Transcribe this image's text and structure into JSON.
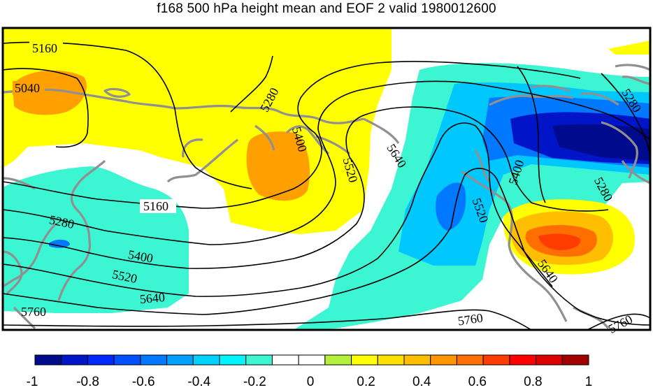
{
  "title": "f168 500 hPa height mean and EOF 2 valid 1980012600",
  "colorbar": {
    "tick_labels": [
      "-1",
      "-0.8",
      "-0.6",
      "-0.4",
      "-0.2",
      "0",
      "0.2",
      "0.4",
      "0.6",
      "0.8",
      "1"
    ],
    "colors": [
      "#000a8c",
      "#0014c8",
      "#0028ff",
      "#0050ff",
      "#0078ff",
      "#00a0ff",
      "#00d2ff",
      "#00f5ff",
      "#3cf5d2",
      "#ffffff",
      "#ffffff",
      "#b4f03c",
      "#ffff00",
      "#ffe100",
      "#ffbe00",
      "#ff9600",
      "#ff6e00",
      "#ff3c00",
      "#ff0000",
      "#dc0000",
      "#a00000"
    ]
  },
  "contour_labels": {
    "l5160a": "5160",
    "l5040": "5040",
    "l5280a": "5280",
    "l5400a": "5400",
    "l5520a": "5520",
    "l5640a": "5640",
    "l5280b": "5280",
    "l5400b": "5400",
    "l5280c": "5280",
    "l5160b": "5160",
    "l5280d": "5280",
    "l5400c": "5400",
    "l5520b": "5520",
    "l5640b": "5640",
    "l5760a": "5760",
    "l5520c": "5520",
    "l5640c": "5640",
    "l5760b": "5760",
    "l5760c": "5760"
  }
}
